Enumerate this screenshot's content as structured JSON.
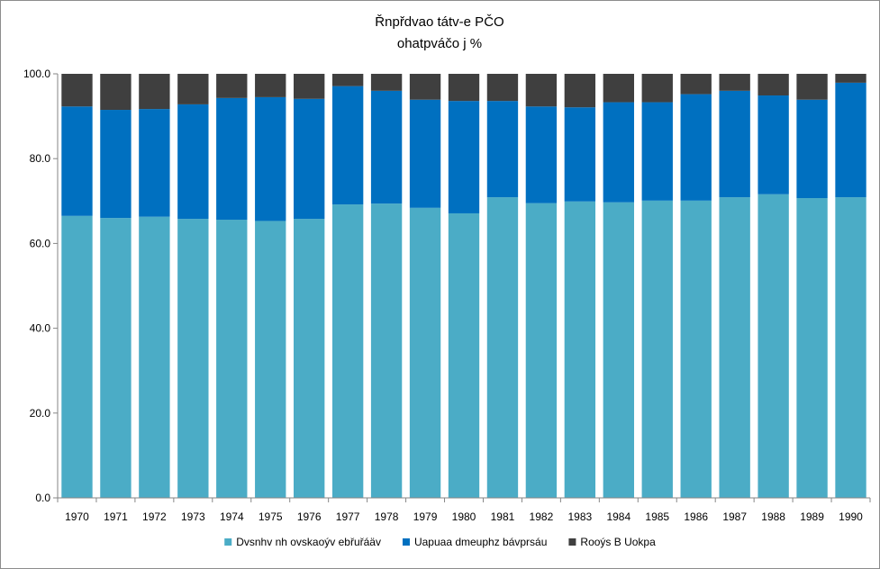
{
  "chart_data": {
    "type": "bar",
    "stacked": true,
    "title_lines": [
      "Řnpřdvao tátv-e PČO",
      "ohatpváčo j %"
    ],
    "xlabel": "",
    "ylabel": "",
    "ylim": [
      0,
      100
    ],
    "yticks": [
      "0.0",
      "20.0",
      "40.0",
      "60.0",
      "80.0",
      "100.0"
    ],
    "grid": false,
    "legend_position": "bottom",
    "categories": [
      "1970",
      "1971",
      "1972",
      "1973",
      "1974",
      "1975",
      "1976",
      "1977",
      "1978",
      "1979",
      "1980",
      "1981",
      "1982",
      "1983",
      "1984",
      "1985",
      "1986",
      "1987",
      "1988",
      "1989",
      "1990"
    ],
    "series": [
      {
        "name": "Dvsnhv nh ovskaoýv ebřuřáäv",
        "color": "#4bacc6",
        "values": [
          66.5,
          66.0,
          66.3,
          65.8,
          65.6,
          65.3,
          65.8,
          69.2,
          69.4,
          68.4,
          67.1,
          70.9,
          69.5,
          69.9,
          69.7,
          70.1,
          70.1,
          70.9,
          71.6,
          70.7,
          70.9
        ]
      },
      {
        "name": "Uapuaa dmeuphz bávprsáu",
        "color": "#0070c0",
        "values": [
          25.8,
          25.5,
          25.4,
          27.0,
          28.7,
          29.2,
          28.3,
          27.9,
          26.6,
          25.5,
          26.5,
          22.7,
          22.8,
          22.2,
          23.6,
          23.2,
          25.1,
          25.1,
          23.3,
          23.2,
          27.0
        ]
      },
      {
        "name": "Rooýs B Uokpa",
        "color": "#3f3f3f",
        "values": [
          7.7,
          8.5,
          8.3,
          7.2,
          5.7,
          5.5,
          5.9,
          2.9,
          4.0,
          6.1,
          6.4,
          6.4,
          7.7,
          7.9,
          6.7,
          6.7,
          4.8,
          4.0,
          5.1,
          6.1,
          2.1
        ]
      }
    ]
  }
}
